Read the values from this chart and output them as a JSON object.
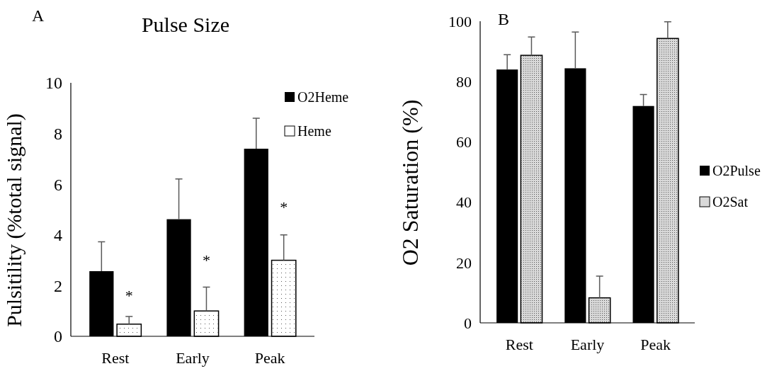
{
  "chart_data": [
    {
      "type": "bar",
      "title": "Pulse Size",
      "ylabel": "Pulsitility (%total signal)",
      "categories": [
        "Rest",
        "Early",
        "Peak"
      ],
      "series": [
        {
          "name": "O2Heme",
          "color": "#000000",
          "values": [
            2.57,
            4.62,
            7.4
          ],
          "errors": [
            1.16,
            1.59,
            1.2
          ]
        },
        {
          "name": "Heme",
          "color": "#ffffff",
          "values": [
            0.48,
            1.0,
            3.0
          ],
          "errors": [
            0.3,
            0.94,
            1.0
          ]
        }
      ],
      "ylim": [
        0,
        10
      ],
      "yticks": [
        0,
        2,
        4,
        6,
        8,
        10
      ],
      "grid": false,
      "legend": "top right",
      "annotations": [
        "A",
        {
          "text": "*",
          "x": "Rest",
          "y": 1.6
        },
        {
          "text": "*",
          "x": "Early",
          "y": 3.0
        },
        {
          "text": "*",
          "x": "Peak",
          "y": 5.1
        }
      ]
    },
    {
      "type": "bar",
      "ylabel": "O2 Saturation (%)",
      "categories": [
        "Rest",
        "Early",
        "Peak"
      ],
      "series": [
        {
          "name": "O2Pulse",
          "color": "#000000",
          "values": [
            84.0,
            84.4,
            71.9
          ],
          "errors": [
            4.9,
            12,
            3.8
          ]
        },
        {
          "name": "O2Sat",
          "color": "#d9d9d9",
          "values": [
            88.7,
            8.3,
            94.3
          ],
          "errors": [
            6.1,
            7.2,
            5.5
          ]
        }
      ],
      "ylim": [
        0,
        100
      ],
      "yticks": [
        0,
        20,
        40,
        60,
        80,
        100
      ],
      "grid": false,
      "legend": "right",
      "annotations": [
        "B"
      ]
    }
  ]
}
